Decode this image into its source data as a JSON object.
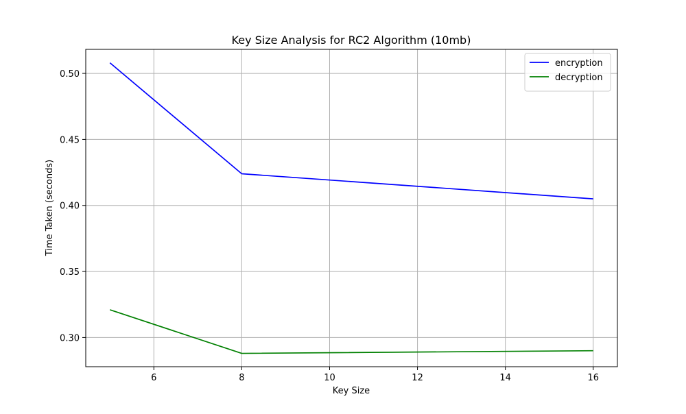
{
  "chart_data": {
    "type": "line",
    "title": "Key Size Analysis for RC2 Algorithm (10mb)",
    "xlabel": "Key Size",
    "ylabel": "Time Taken (seconds)",
    "x": [
      5,
      8,
      16
    ],
    "series": [
      {
        "name": "encryption",
        "color": "#0000ff",
        "values": [
          0.508,
          0.424,
          0.405
        ]
      },
      {
        "name": "decryption",
        "color": "#008000",
        "values": [
          0.321,
          0.288,
          0.29
        ]
      }
    ],
    "xlim": [
      4.45,
      16.55
    ],
    "ylim": [
      0.2779,
      0.5182
    ],
    "xticks": [
      6,
      8,
      10,
      12,
      14,
      16
    ],
    "yticks": [
      0.3,
      0.35,
      0.4,
      0.45,
      0.5
    ],
    "xtick_labels": [
      "6",
      "8",
      "10",
      "12",
      "14",
      "16"
    ],
    "ytick_labels": [
      "0.30",
      "0.35",
      "0.40",
      "0.45",
      "0.50"
    ],
    "grid": true,
    "legend_position": "top-right",
    "grid_color": "#b0b0b0"
  }
}
